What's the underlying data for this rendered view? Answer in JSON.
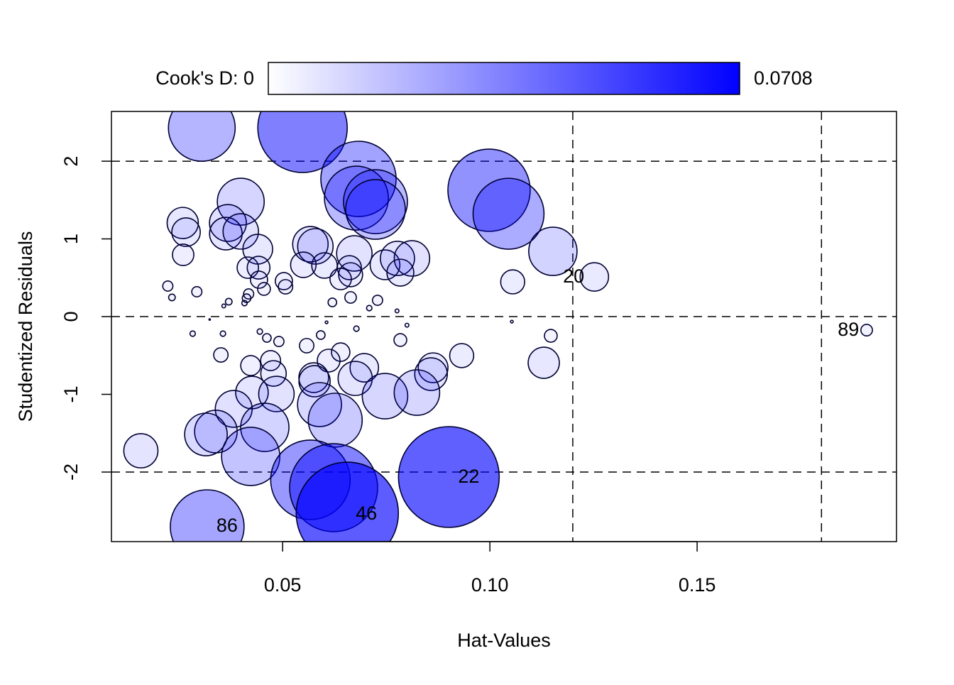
{
  "chart_data": {
    "type": "scatter",
    "subtype": "bubble (influence plot)",
    "xlabel": "Hat-Values",
    "ylabel": "Studentized Residuals",
    "xlim": [
      0.0087,
      0.1981
    ],
    "ylim": [
      -2.895,
      2.64
    ],
    "x_ticks": [
      0.05,
      0.1,
      0.15
    ],
    "x_tick_labels": [
      "0.05",
      "0.10",
      "0.15"
    ],
    "y_ticks": [
      -2,
      -1,
      0,
      1,
      2
    ],
    "y_tick_labels": [
      "-2",
      "-1",
      "0",
      "1",
      "2"
    ],
    "grid": false,
    "reference_lines": {
      "horizontal": [
        -2,
        0,
        2
      ],
      "vertical": [
        0.12,
        0.18
      ],
      "style": "dashed"
    },
    "legend": {
      "position": "top",
      "label_min": "Cook's D: 0",
      "label_max": "0.0708",
      "min": 0,
      "max": 0.0708,
      "color_low": "#ffffff",
      "color_high": "#0000ff"
    },
    "size_and_color_encode": "Cook's D",
    "point_fields": [
      "hat",
      "rstudent",
      "cooks_d"
    ],
    "points": [
      [
        0.0305,
        2.429,
        0.0302
      ],
      [
        0.0548,
        2.429,
        0.0542
      ],
      [
        0.0683,
        1.772,
        0.0384
      ],
      [
        0.0678,
        1.525,
        0.0277
      ],
      [
        0.0724,
        1.479,
        0.0277
      ],
      [
        0.0724,
        1.379,
        0.0241
      ],
      [
        0.0998,
        1.626,
        0.0459
      ],
      [
        0.1045,
        1.324,
        0.0341
      ],
      [
        0.1152,
        0.84,
        0.0158
      ],
      [
        0.1252,
        0.511,
        0.0055
      ],
      [
        0.1055,
        0.447,
        0.0039
      ],
      [
        0.1909,
        -0.174,
        0.0009
      ],
      [
        0.1147,
        -0.247,
        0.0011
      ],
      [
        0.113,
        -0.594,
        0.0066
      ],
      [
        0.0932,
        -0.502,
        0.0039
      ],
      [
        0.0259,
        1.205,
        0.0066
      ],
      [
        0.0267,
        1.087,
        0.0055
      ],
      [
        0.026,
        0.795,
        0.0031
      ],
      [
        0.0399,
        1.479,
        0.0149
      ],
      [
        0.0368,
        1.205,
        0.0092
      ],
      [
        0.0363,
        1.068,
        0.0072
      ],
      [
        0.0399,
        1.096,
        0.0085
      ],
      [
        0.044,
        0.868,
        0.006
      ],
      [
        0.0416,
        0.63,
        0.0031
      ],
      [
        0.0442,
        0.63,
        0.0035
      ],
      [
        0.0443,
        0.475,
        0.002
      ],
      [
        0.0455,
        0.356,
        0.0011
      ],
      [
        0.0567,
        0.932,
        0.0085
      ],
      [
        0.0579,
        0.904,
        0.0085
      ],
      [
        0.055,
        0.667,
        0.0044
      ],
      [
        0.0601,
        0.658,
        0.0044
      ],
      [
        0.0673,
        0.813,
        0.0085
      ],
      [
        0.0661,
        0.63,
        0.0039
      ],
      [
        0.0664,
        0.539,
        0.0039
      ],
      [
        0.064,
        0.484,
        0.0031
      ],
      [
        0.0747,
        0.667,
        0.006
      ],
      [
        0.0777,
        0.749,
        0.0079
      ],
      [
        0.0812,
        0.749,
        0.0085
      ],
      [
        0.0784,
        0.566,
        0.0049
      ],
      [
        0.0223,
        0.393,
        0.0007
      ],
      [
        0.0233,
        0.247,
        0.0003
      ],
      [
        0.0293,
        0.32,
        0.0007
      ],
      [
        0.0418,
        0.292,
        0.0007
      ],
      [
        0.0413,
        0.237,
        0.0005
      ],
      [
        0.0408,
        0.174,
        0.0002
      ],
      [
        0.037,
        0.192,
        0.0003
      ],
      [
        0.0358,
        0.137,
        0.0001
      ],
      [
        0.0503,
        0.457,
        0.002
      ],
      [
        0.0507,
        0.384,
        0.0014
      ],
      [
        0.062,
        0.183,
        0.0005
      ],
      [
        0.0664,
        0.247,
        0.0009
      ],
      [
        0.0729,
        0.21,
        0.0007
      ],
      [
        0.0709,
        0.11,
        0.0002
      ],
      [
        0.0776,
        0.073,
        0.0001
      ],
      [
        0.0606,
        -0.073,
        5e-05
      ],
      [
        0.08,
        -0.11,
        0.0001
      ],
      [
        0.0324,
        -0.037,
        1e-05
      ],
      [
        0.1053,
        -0.064,
        5e-05
      ],
      [
        0.0283,
        -0.219,
        0.0002
      ],
      [
        0.0356,
        -0.219,
        0.0002
      ],
      [
        0.0445,
        -0.192,
        0.0002
      ],
      [
        0.0462,
        -0.274,
        0.0005
      ],
      [
        0.0491,
        -0.32,
        0.0007
      ],
      [
        0.0592,
        -0.237,
        0.0005
      ],
      [
        0.0678,
        -0.155,
        0.0002
      ],
      [
        0.0784,
        -0.301,
        0.0011
      ],
      [
        0.0351,
        -0.493,
        0.0014
      ],
      [
        0.0558,
        -0.374,
        0.0014
      ],
      [
        0.064,
        -0.457,
        0.0023
      ],
      [
        0.0611,
        -0.566,
        0.0035
      ],
      [
        0.0423,
        -0.63,
        0.0027
      ],
      [
        0.0471,
        -0.566,
        0.0027
      ],
      [
        0.0478,
        -0.731,
        0.0044
      ],
      [
        0.0697,
        -0.658,
        0.0055
      ],
      [
        0.0575,
        -0.785,
        0.006
      ],
      [
        0.0577,
        -0.831,
        0.0066
      ],
      [
        0.0675,
        -0.795,
        0.0079
      ],
      [
        0.0863,
        -0.658,
        0.006
      ],
      [
        0.0858,
        -0.74,
        0.0072
      ],
      [
        0.0747,
        -1.023,
        0.014
      ],
      [
        0.0824,
        -0.977,
        0.014
      ],
      [
        0.0426,
        -0.977,
        0.0072
      ],
      [
        0.0485,
        -0.995,
        0.0085
      ],
      [
        0.0382,
        -1.187,
        0.0092
      ],
      [
        0.0589,
        -1.132,
        0.0131
      ],
      [
        0.0627,
        -1.333,
        0.0197
      ],
      [
        0.0457,
        -1.425,
        0.0158
      ],
      [
        0.0339,
        -1.479,
        0.0123
      ],
      [
        0.0315,
        -1.516,
        0.0123
      ],
      [
        0.0158,
        -1.726,
        0.0079
      ],
      [
        0.0423,
        -1.799,
        0.023
      ],
      [
        0.0567,
        -2.1,
        0.0428
      ],
      [
        0.0623,
        -2.201,
        0.0525
      ],
      [
        0.0656,
        -2.53,
        0.0708
      ],
      [
        0.0901,
        -2.064,
        0.0688
      ],
      [
        0.0318,
        -2.703,
        0.0369
      ]
    ],
    "point_labels": [
      {
        "text": "20",
        "x": 0.1202,
        "y": 0.53
      },
      {
        "text": "89",
        "x": 0.1865,
        "y": -0.155
      },
      {
        "text": "22",
        "x": 0.0949,
        "y": -2.046
      },
      {
        "text": "46",
        "x": 0.0702,
        "y": -2.521
      },
      {
        "text": "86",
        "x": 0.0366,
        "y": -2.675
      }
    ]
  }
}
